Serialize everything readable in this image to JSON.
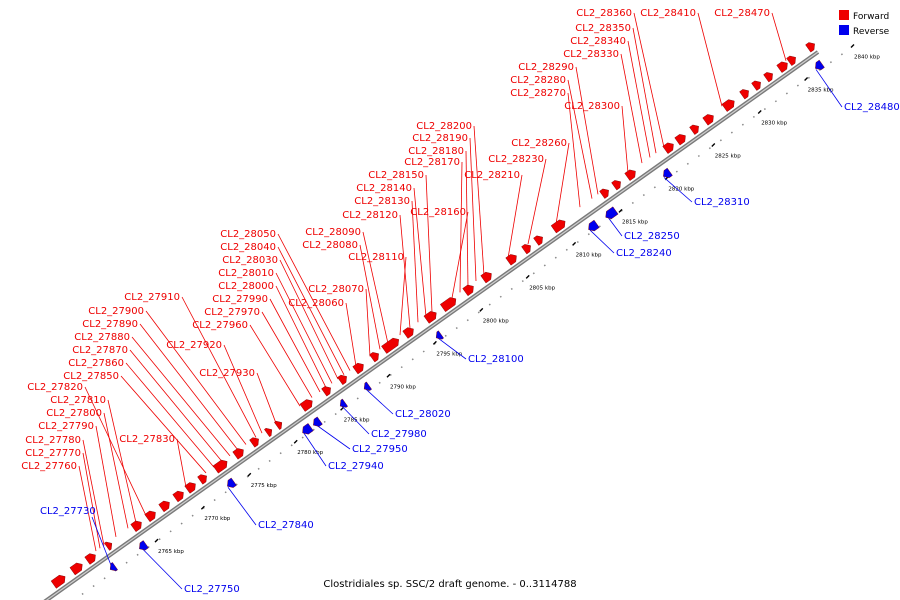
{
  "caption": "Clostridiales sp. SSC/2 draft genome. - 0..3114788",
  "legend": [
    {
      "label": "Forward",
      "color": "#ee0000"
    },
    {
      "label": "Reverse",
      "color": "#0000ee"
    }
  ],
  "axis": {
    "ticks": [
      "2765 kbp",
      "2770 kbp",
      "2775 kbp",
      "2780 kbp",
      "2785 kbp",
      "2790 kbp",
      "2795 kbp",
      "2800 kbp",
      "2805 kbp",
      "2810 kbp",
      "2815 kbp",
      "2820 kbp",
      "2825 kbp",
      "2830 kbp",
      "2835 kbp",
      "2840 kbp"
    ]
  },
  "forward_genes": [
    "CL2_27760",
    "CL2_27770",
    "CL2_27780",
    "CL2_27790",
    "CL2_27800",
    "CL2_27810",
    "CL2_27820",
    "CL2_27830",
    "CL2_27850",
    "CL2_27860",
    "CL2_27870",
    "CL2_27880",
    "CL2_27890",
    "CL2_27900",
    "CL2_27910",
    "CL2_27920",
    "CL2_27930",
    "CL2_27960",
    "CL2_27970",
    "CL2_27990",
    "CL2_28000",
    "CL2_28010",
    "CL2_28030",
    "CL2_28040",
    "CL2_28050",
    "CL2_28060",
    "CL2_28070",
    "CL2_28080",
    "CL2_28090",
    "CL2_28110",
    "CL2_28120",
    "CL2_28130",
    "CL2_28140",
    "CL2_28150",
    "CL2_28160",
    "CL2_28170",
    "CL2_28180",
    "CL2_28190",
    "CL2_28200",
    "CL2_28210",
    "CL2_28230",
    "CL2_28260",
    "CL2_28270",
    "CL2_28280",
    "CL2_28290",
    "CL2_28300",
    "CL2_28330",
    "CL2_28340",
    "CL2_28350",
    "CL2_28360",
    "CL2_28410",
    "CL2_28470"
  ],
  "reverse_genes": [
    "CL2_27730",
    "CL2_27750",
    "CL2_27840",
    "CL2_27940",
    "CL2_27950",
    "CL2_27980",
    "CL2_28020",
    "CL2_28100",
    "CL2_28240",
    "CL2_28250",
    "CL2_28310",
    "CL2_28480"
  ]
}
